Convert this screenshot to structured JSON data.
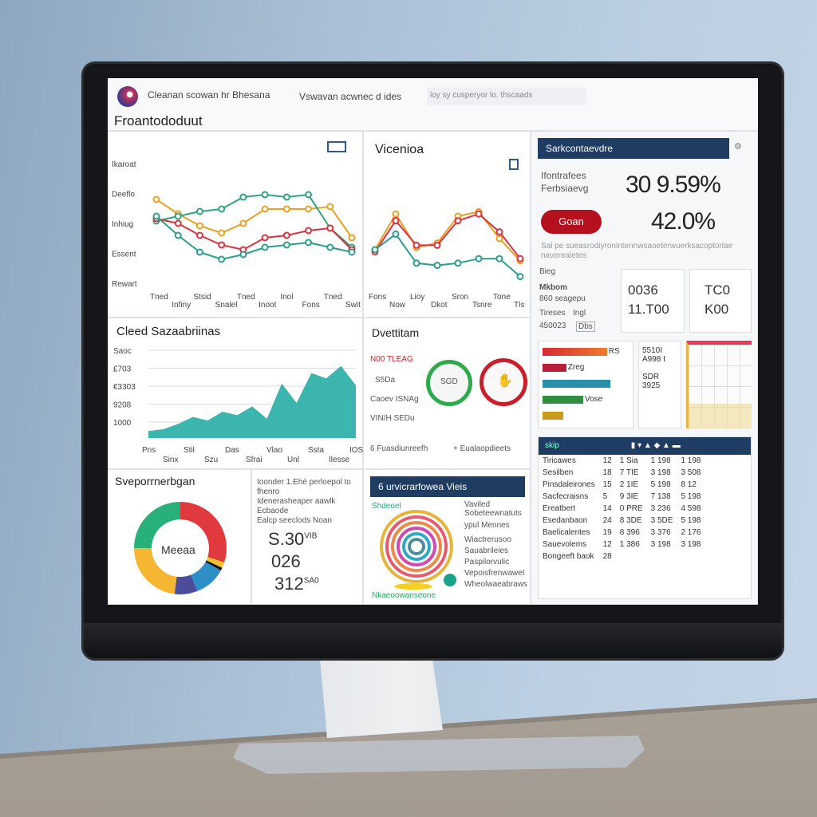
{
  "header": {
    "app_title": "Cleanan scowan hr Bhesana",
    "tab_1": "Vswavan acwnec d ides",
    "search_placeholder": "loy sy cusperyor lo. thscaads",
    "page_title": "Froantododuut"
  },
  "line_chart_1": {
    "type": "line",
    "y_labels": [
      "Ikaroat",
      "Deeflo",
      "Inhiug",
      "Essent",
      "Rewart"
    ],
    "x_labels": [
      "Tned",
      "Infiny",
      "Stsid",
      "Snalel",
      "Tned",
      "Inoot",
      "Inol",
      "Fons",
      "Tned",
      "Swit"
    ],
    "series": [
      {
        "color": "#e8a020",
        "values": [
          70,
          58,
          48,
          42,
          50,
          62,
          62,
          62,
          64,
          38
        ]
      },
      {
        "color": "#2fa37a",
        "values": [
          52,
          56,
          60,
          62,
          72,
          74,
          72,
          74,
          46,
          30
        ]
      },
      {
        "color": "#d8333f",
        "values": [
          54,
          50,
          40,
          32,
          28,
          38,
          40,
          44,
          46,
          28
        ]
      },
      {
        "color": "#2a9d8f",
        "values": [
          56,
          40,
          26,
          20,
          24,
          30,
          32,
          34,
          30,
          26
        ]
      }
    ]
  },
  "line_chart_2": {
    "type": "line",
    "title": "Vicenioa",
    "x_labels": [
      "Fons",
      "Now",
      "Lioy",
      "Dkot",
      "Sron",
      "Tsnre",
      "Tone",
      "Tls"
    ],
    "series": [
      {
        "color": "#e8a020",
        "values": [
          30,
          62,
          32,
          36,
          60,
          64,
          40,
          20
        ]
      },
      {
        "color": "#d8333f",
        "values": [
          28,
          56,
          34,
          34,
          56,
          62,
          46,
          22
        ]
      },
      {
        "color": "#2a9d8f",
        "values": [
          30,
          44,
          18,
          16,
          18,
          22,
          22,
          6
        ]
      }
    ]
  },
  "area_chart": {
    "type": "area",
    "title": "Cleed Sazaabriinas",
    "y_labels": [
      "Saoc",
      "£703",
      "€3303",
      "9208",
      "1000"
    ],
    "x_labels": [
      "Pns",
      "Sinx",
      "Stil",
      "Szu",
      "Das",
      "Sfrai",
      "Vlao",
      "Unl",
      "Ssta",
      "Ilesse",
      "IOS"
    ],
    "color": "#3bb5ad",
    "values": [
      8,
      10,
      16,
      24,
      20,
      30,
      26,
      36,
      22,
      62,
      40,
      74,
      68,
      82,
      60
    ]
  },
  "gauges": {
    "title": "Dvettitam",
    "red_label": "N00 TLEAG",
    "labels": [
      "S5Da",
      "Caoev ISNAg",
      "VIN/H SEDu"
    ],
    "items": [
      {
        "label": "6 Fuasdiunreefh",
        "color": "#2eaa4c",
        "inner": "SGD"
      },
      {
        "label": "+ Eualaopdieets",
        "color": "#c81f2b",
        "inner": ""
      }
    ]
  },
  "donut": {
    "title": "Sveporrnerbgan",
    "center": "Meeaa",
    "slices": [
      {
        "color": "#e03a3e",
        "value": 30
      },
      {
        "color": "#f2c12e",
        "value": 2
      },
      {
        "color": "#111111",
        "value": 1
      },
      {
        "color": "#2e8fc8",
        "value": 11
      },
      {
        "color": "#4b4c9a",
        "value": 8
      },
      {
        "color": "#f5b731",
        "value": 23
      },
      {
        "color": "#27b07a",
        "value": 25
      }
    ]
  },
  "stats": {
    "lines": [
      "Ioonder 1.Ehé perloepol to fhenro",
      "Idenerasheaper aawlk Ecbaode",
      "Ealcp seeclods Noan"
    ],
    "values": [
      {
        "value": "S.30",
        "sup": "VIB"
      },
      {
        "value": "026",
        "sup": ""
      },
      {
        "value": "312",
        "sup": "SA0"
      }
    ]
  },
  "rings": {
    "title": "6 urvicrarfowea Vieis",
    "label": "Shdeoel",
    "legend_top": "Vaviled Sobeteewnatuts",
    "legend_head": "ypul Mennes",
    "legend": [
      "Wiactrerusoo",
      "Sauabrileies",
      "Paspilorvulic",
      "Vepoisfrenwawet",
      "Wheolwaeabraws"
    ],
    "bottom": "Nkaeoowanseone",
    "colors": [
      "#e7b43a",
      "#e85b6f",
      "#ec8a4a",
      "#d24bb0",
      "#2eaac4",
      "#4d8f9c"
    ]
  },
  "kpi": {
    "title": "Sarkcontaevdre",
    "label_1": "Ifontrafees",
    "label_2": "Ferbsiaevg",
    "value_1": "30 9.59%",
    "button": "Goan",
    "value_2": "42.0%",
    "note": "Sal pe sueasrodiyronintennwsaoeterwuerksacoptoriae naverealetes"
  },
  "mini": {
    "head": "Bieg",
    "row_1": [
      "Mkbom",
      "860 seagepu"
    ],
    "row_2": [
      "Tireses",
      "Ingl",
      "450023",
      "Dbs"
    ],
    "box_1": [
      "0036",
      "11.T00"
    ],
    "box_2": [
      "TC0",
      "K00"
    ],
    "box_3": [
      "5510I",
      "A998 I"
    ],
    "box_4": [
      "SDR",
      "3925"
    ],
    "bars": [
      {
        "color": "#d62a35",
        "to": "#ef7a2a",
        "value": 0.95,
        "label": "RS"
      },
      {
        "color": "#b81d3a",
        "value": 0.35,
        "label": "Zreg"
      },
      {
        "color": "#2a8fa8",
        "value": 1.0,
        "label": ""
      },
      {
        "color": "#2f8f3f",
        "value": 0.6,
        "label": "Vose"
      },
      {
        "color": "#c89a1c",
        "value": 0.3,
        "label": ""
      }
    ]
  },
  "table": {
    "header": "skip",
    "rows": [
      [
        "Tiricawes",
        "12",
        "1 Sia",
        "1 198",
        "1 198"
      ],
      [
        "Sesilben",
        "18",
        "7 TIE",
        "3 198",
        "3 508"
      ],
      [
        "Pinsdaleirones",
        "15",
        "2 1IE",
        "5 198",
        "8 12"
      ],
      [
        "Sacfecraisns",
        "5",
        "9 3IE",
        "7 138",
        "5 198"
      ],
      [
        "Ereatbert",
        "14",
        "0 PRE",
        "3 236",
        "4 598"
      ],
      [
        "Esedanbaon",
        "24",
        "8 3DE",
        "3 5DE",
        "5 198"
      ],
      [
        "Baelicalentes",
        "19",
        "8 396",
        "3 376",
        "2 176"
      ],
      [
        "Sauevolems",
        "12",
        "1 386",
        "3 198",
        "3 198"
      ],
      [
        "Bongeeft baok",
        "28",
        "",
        "",
        ""
      ]
    ]
  }
}
